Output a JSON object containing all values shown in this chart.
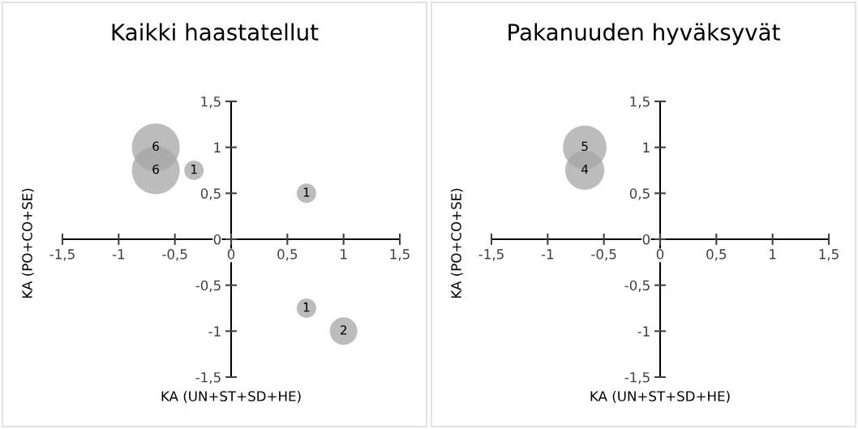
{
  "chart_data": [
    {
      "type": "bubble",
      "title": "Kaikki haastatellut",
      "xlabel": "KA (UN+ST+SD+HE)",
      "ylabel": "KA (PO+CO+SE)",
      "series": [
        {
          "color": "#a6a6a6",
          "x": [
            -0.67,
            -0.67,
            -0.33,
            0.67,
            0.67,
            1
          ],
          "values": [
            1,
            0.75,
            0.75,
            0.5,
            -0.75,
            -1
          ],
          "sizes": [
            6,
            6,
            1,
            1,
            1,
            2
          ],
          "value_labels": [
            "6",
            "6",
            "1",
            "1",
            "1",
            "2"
          ]
        }
      ],
      "xlim": [
        -1.5,
        1.5
      ],
      "ylim": [
        -1.5,
        1.5
      ],
      "xticks": [
        {
          "value": -1.5,
          "label": "-1,5"
        },
        -1,
        {
          "value": -0.5,
          "label": "-0,5"
        },
        0,
        {
          "value": 0.5,
          "label": "0,5"
        },
        1,
        {
          "value": 1.5,
          "label": "1,5"
        }
      ],
      "yticks": [
        {
          "value": -1.5,
          "label": "-1,5"
        },
        -1,
        {
          "value": -0.5,
          "label": "-0,5"
        },
        0,
        {
          "value": 0.5,
          "label": "0,5"
        },
        1,
        {
          "value": 1.5,
          "label": "1,5"
        }
      ]
    },
    {
      "type": "bubble",
      "title": "Pakanuuden hyväksyvät",
      "xlabel": "KA (UN+ST+SD+HE)",
      "ylabel": "KA (PO+CO+SE)",
      "series": [
        {
          "color": "#a6a6a6",
          "x": [
            -0.67,
            -0.67
          ],
          "values": [
            1,
            0.75
          ],
          "sizes": [
            5,
            4
          ],
          "value_labels": [
            "5",
            "4"
          ]
        }
      ],
      "xlim": [
        -1.5,
        1.5
      ],
      "ylim": [
        -1.5,
        1.5
      ],
      "xticks": [
        {
          "value": -1.5,
          "label": "-1,5"
        },
        -1,
        {
          "value": -0.5,
          "label": "-0,5"
        },
        0,
        {
          "value": 0.5,
          "label": "0,5"
        },
        1,
        {
          "value": 1.5,
          "label": "1,5"
        }
      ],
      "yticks": [
        {
          "value": -1.5,
          "label": "-1,5"
        },
        -1,
        {
          "value": -0.5,
          "label": "-0,5"
        },
        0,
        {
          "value": 0.5,
          "label": "0,5"
        },
        1,
        {
          "value": 1.5,
          "label": "1,5"
        }
      ]
    }
  ]
}
